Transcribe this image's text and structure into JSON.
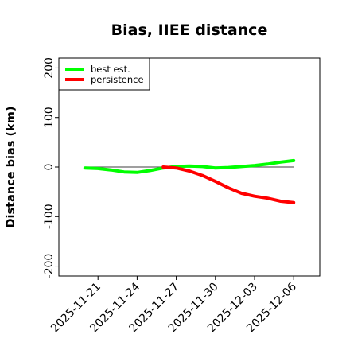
{
  "chart_data": {
    "type": "line",
    "title": "Bias, IIEE distance",
    "xlabel": "",
    "ylabel": "Distance bias (km)",
    "x_ticks": [
      "2025-11-21",
      "2025-11-24",
      "2025-11-27",
      "2025-11-30",
      "2025-12-03",
      "2025-12-06"
    ],
    "y_ticks": [
      "-200",
      "-100",
      "0",
      "100",
      "200"
    ],
    "xlim": [
      "2025-11-18",
      "2025-12-08"
    ],
    "ylim": [
      -220,
      220
    ],
    "zero_line": true,
    "grid": false,
    "legend_position": "top-left",
    "series": [
      {
        "name": "best est.",
        "color": "#00ff00",
        "points": [
          [
            "2025-11-20",
            -2
          ],
          [
            "2025-11-21",
            -3
          ],
          [
            "2025-11-22",
            -6
          ],
          [
            "2025-11-23",
            -10
          ],
          [
            "2025-11-24",
            -11
          ],
          [
            "2025-11-25",
            -7
          ],
          [
            "2025-11-26",
            -2
          ],
          [
            "2025-11-27",
            1
          ],
          [
            "2025-11-28",
            2
          ],
          [
            "2025-11-29",
            1
          ],
          [
            "2025-11-30",
            -2
          ],
          [
            "2025-12-01",
            -1
          ],
          [
            "2025-12-02",
            1
          ],
          [
            "2025-12-03",
            3
          ],
          [
            "2025-12-04",
            6
          ],
          [
            "2025-12-05",
            10
          ],
          [
            "2025-12-06",
            13
          ]
        ]
      },
      {
        "name": "persistence",
        "color": "#ff0000",
        "points": [
          [
            "2025-11-26",
            0
          ],
          [
            "2025-11-27",
            -2
          ],
          [
            "2025-11-28",
            -8
          ],
          [
            "2025-11-29",
            -17
          ],
          [
            "2025-11-30",
            -29
          ],
          [
            "2025-12-01",
            -42
          ],
          [
            "2025-12-02",
            -53
          ],
          [
            "2025-12-03",
            -59
          ],
          [
            "2025-12-04",
            -63
          ],
          [
            "2025-12-05",
            -69
          ],
          [
            "2025-12-06",
            -72
          ]
        ]
      }
    ]
  }
}
